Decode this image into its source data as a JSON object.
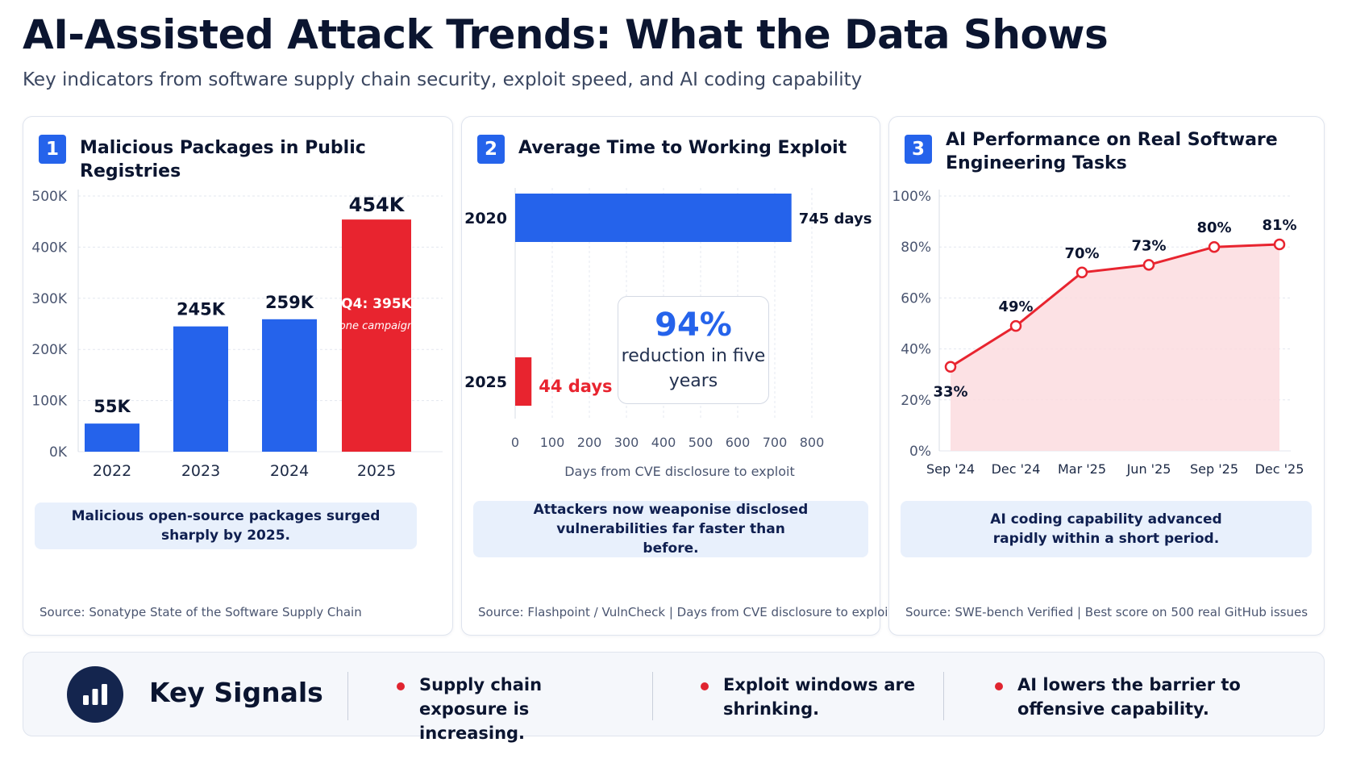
{
  "header": {
    "title": "AI-Assisted Attack Trends: What the Data Shows",
    "subtitle": "Key indicators from software supply chain security, exploit speed, and AI coding capability"
  },
  "colors": {
    "blue": "#2563eb",
    "red": "#e8242f",
    "navy": "#14254e"
  },
  "panels": [
    {
      "number": "1",
      "title": "Malicious Packages in Public Registries",
      "note": "Malicious open-source packages surged sharply by 2025.",
      "source": "Source: Sonatype State of the Software Supply Chain"
    },
    {
      "number": "2",
      "title": "Average Time to Working Exploit",
      "note": "Attackers now weaponise disclosed vulnerabilities far faster than before.",
      "source": "Source: Flashpoint / VulnCheck | Days from CVE disclosure to exploit",
      "callout": {
        "value": "94%",
        "text": "reduction in five years"
      }
    },
    {
      "number": "3",
      "title": "AI Performance on Real Software Engineering Tasks",
      "note": "AI coding capability advanced rapidly within a short period.",
      "source": "Source: SWE-bench Verified | Best score on 500 real GitHub issues"
    }
  ],
  "chart_data": [
    {
      "type": "bar",
      "title": "Malicious Packages in Public Registries",
      "categories": [
        "2022",
        "2023",
        "2024",
        "2025"
      ],
      "values": [
        55000,
        245000,
        259000,
        454000
      ],
      "value_labels": [
        "55K",
        "245K",
        "259K",
        "454K"
      ],
      "highlight_index": 3,
      "highlight_annotation": {
        "label": "Q4: 395K",
        "sublabel": "one campaign"
      },
      "yticks": [
        0,
        100000,
        200000,
        300000,
        400000,
        500000
      ],
      "ytick_labels": [
        "0K",
        "100K",
        "200K",
        "300K",
        "400K",
        "500K"
      ],
      "ylim": [
        0,
        500000
      ],
      "grid": true
    },
    {
      "type": "bar",
      "orientation": "horizontal",
      "title": "Average Time to Working Exploit",
      "categories": [
        "2020",
        "2025"
      ],
      "values": [
        745,
        44
      ],
      "value_labels": [
        "745 days",
        "44 days"
      ],
      "xlabel": "Days from CVE disclosure to exploit",
      "xticks": [
        0,
        100,
        200,
        300,
        400,
        500,
        600,
        700,
        800
      ],
      "xlim": [
        0,
        800
      ],
      "grid": true
    },
    {
      "type": "area",
      "title": "AI Performance on Real Software Engineering Tasks",
      "x": [
        "Sep '24",
        "Dec '24",
        "Mar '25",
        "Jun '25",
        "Sep '25",
        "Dec '25"
      ],
      "values": [
        33,
        49,
        70,
        73,
        80,
        81
      ],
      "value_labels": [
        "33%",
        "49%",
        "70%",
        "73%",
        "80%",
        "81%"
      ],
      "yticks": [
        0,
        20,
        40,
        60,
        80,
        100
      ],
      "ytick_labels": [
        "0%",
        "20%",
        "40%",
        "60%",
        "80%",
        "100%"
      ],
      "ylim": [
        0,
        100
      ],
      "grid": true
    }
  ],
  "signals": {
    "title": "Key Signals",
    "icon": "bar-chart-icon",
    "items": [
      "Supply chain exposure is increasing.",
      "Exploit windows are shrinking.",
      "AI lowers the barrier to offensive capability."
    ]
  }
}
